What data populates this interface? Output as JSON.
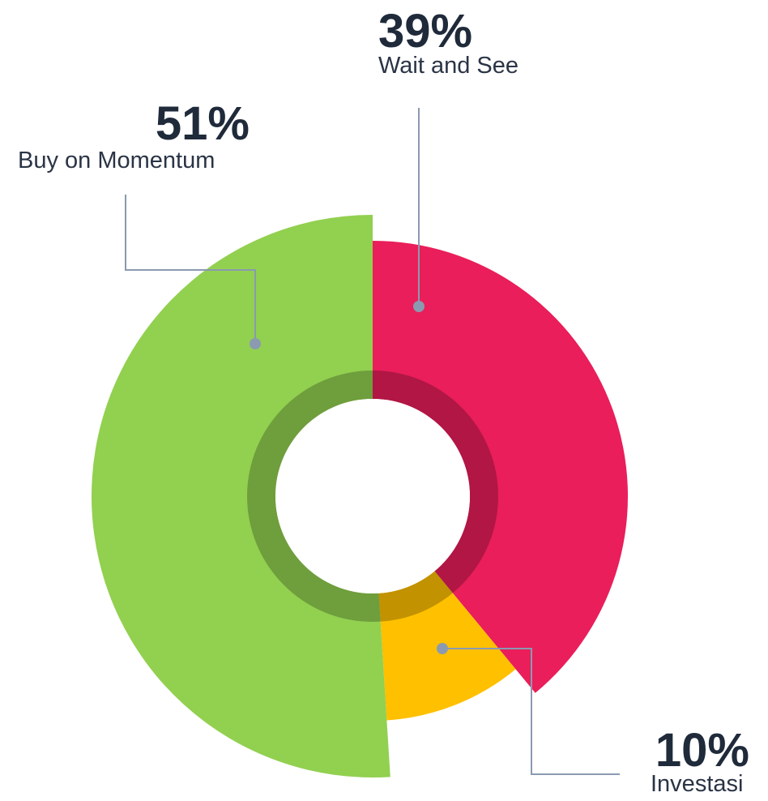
{
  "chart_data": {
    "type": "donut",
    "categories": [
      "Wait and See",
      "Investasi",
      "Buy on Momentum"
    ],
    "values": [
      39,
      10,
      51
    ],
    "value_labels": [
      "39%",
      "10%",
      "51%"
    ],
    "colors": [
      "#e91e5a",
      "#ffc000",
      "#92d050"
    ]
  }
}
